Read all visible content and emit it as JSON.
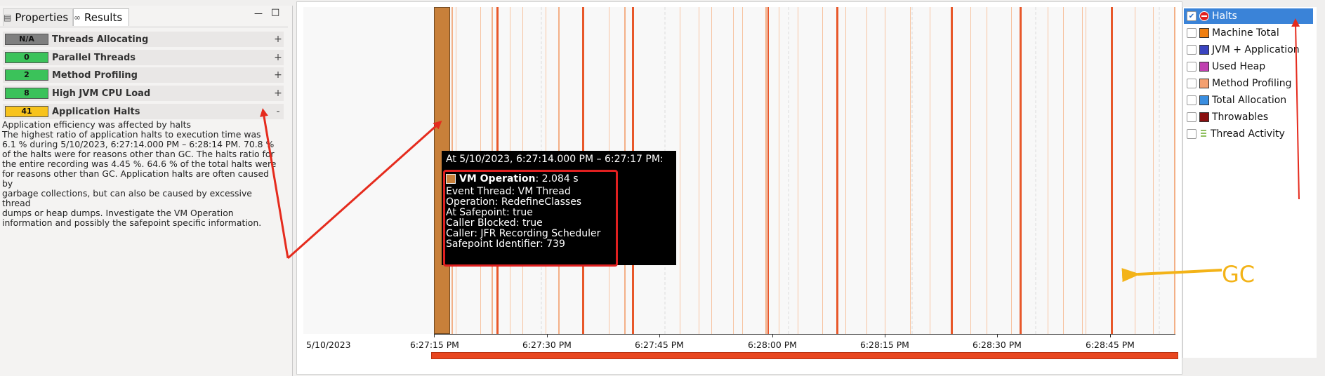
{
  "left": {
    "tabs": [
      {
        "label": "Properties",
        "icon": "properties-icon"
      },
      {
        "label": "Results",
        "icon": "results-icon"
      }
    ],
    "window_buttons": {
      "minimize": "—",
      "maximize": "□"
    },
    "rules": [
      {
        "score": "N/A",
        "label": "Threads Allocating",
        "expand": "+",
        "color": "#7f7f7f"
      },
      {
        "score": "0",
        "label": "Parallel Threads",
        "expand": "+",
        "color": "#3bc25a"
      },
      {
        "score": "2",
        "label": "Method Profiling",
        "expand": "+",
        "color": "#3bc25a"
      },
      {
        "score": "8",
        "label": "High JVM CPU Load",
        "expand": "+",
        "color": "#3bc25a"
      },
      {
        "score": "41",
        "label": "Application Halts",
        "expand": "-",
        "color": "#f7c31c"
      }
    ],
    "description": "Application efficiency was affected by halts\nThe highest ratio of application halts to execution time was\n6.1 % during 5/10/2023, 6:27:14.000 PM – 6:28:14 PM. 70.8 %\nof the halts were for reasons other than GC. The halts ratio for\nthe entire recording was 4.45 %. 64.6 % of the total halts were\nfor reasons other than GC. Application halts are often caused by\ngarbage collections, but can also be caused by excessive thread\ndumps or heap dumps. Investigate the VM Operation\ninformation and possibly the safepoint specific information."
  },
  "chart": {
    "date_label": "5/10/2023",
    "x_ticks": [
      "6:27:15 PM",
      "6:27:30 PM",
      "6:27:45 PM",
      "6:28:00 PM",
      "6:28:15 PM",
      "6:28:30 PM",
      "6:28:45 PM"
    ],
    "colors": {
      "halt_bar": "#e8582a",
      "vm_operation": "#c8803a",
      "range_bar": "#e8461f"
    }
  },
  "legend": [
    {
      "label": "Halts",
      "checked": true,
      "swatch": "#e02020",
      "icon": "no-entry-icon",
      "selected": true
    },
    {
      "label": "Machine Total",
      "checked": false,
      "swatch": "#f07f10"
    },
    {
      "label": "JVM + Application",
      "checked": false,
      "swatch": "#3a44c0"
    },
    {
      "label": "Used Heap",
      "checked": false,
      "swatch": "#c040b0"
    },
    {
      "label": "Method Profiling",
      "checked": false,
      "swatch": "#f4a070"
    },
    {
      "label": "Total Allocation",
      "checked": false,
      "swatch": "#3a8ee0"
    },
    {
      "label": "Throwables",
      "checked": false,
      "swatch": "#8a1010"
    },
    {
      "label": "Thread Activity",
      "checked": false,
      "swatch": "#8fbf5f",
      "icon": "thread-activity-icon"
    }
  ],
  "tooltip": {
    "header": "At 5/10/2023, 6:27:14.000 PM – 6:27:17 PM:",
    "event_name": "VM Operation",
    "event_value": ": 2.084 s",
    "lines": [
      "Event Thread: VM Thread",
      "Operation: RedefineClasses",
      "At Safepoint: true",
      "Caller Blocked: true",
      "Caller: JFR Recording Scheduler",
      "Safepoint Identifier: 739"
    ]
  },
  "annotations": {
    "gc_label": "GC"
  }
}
